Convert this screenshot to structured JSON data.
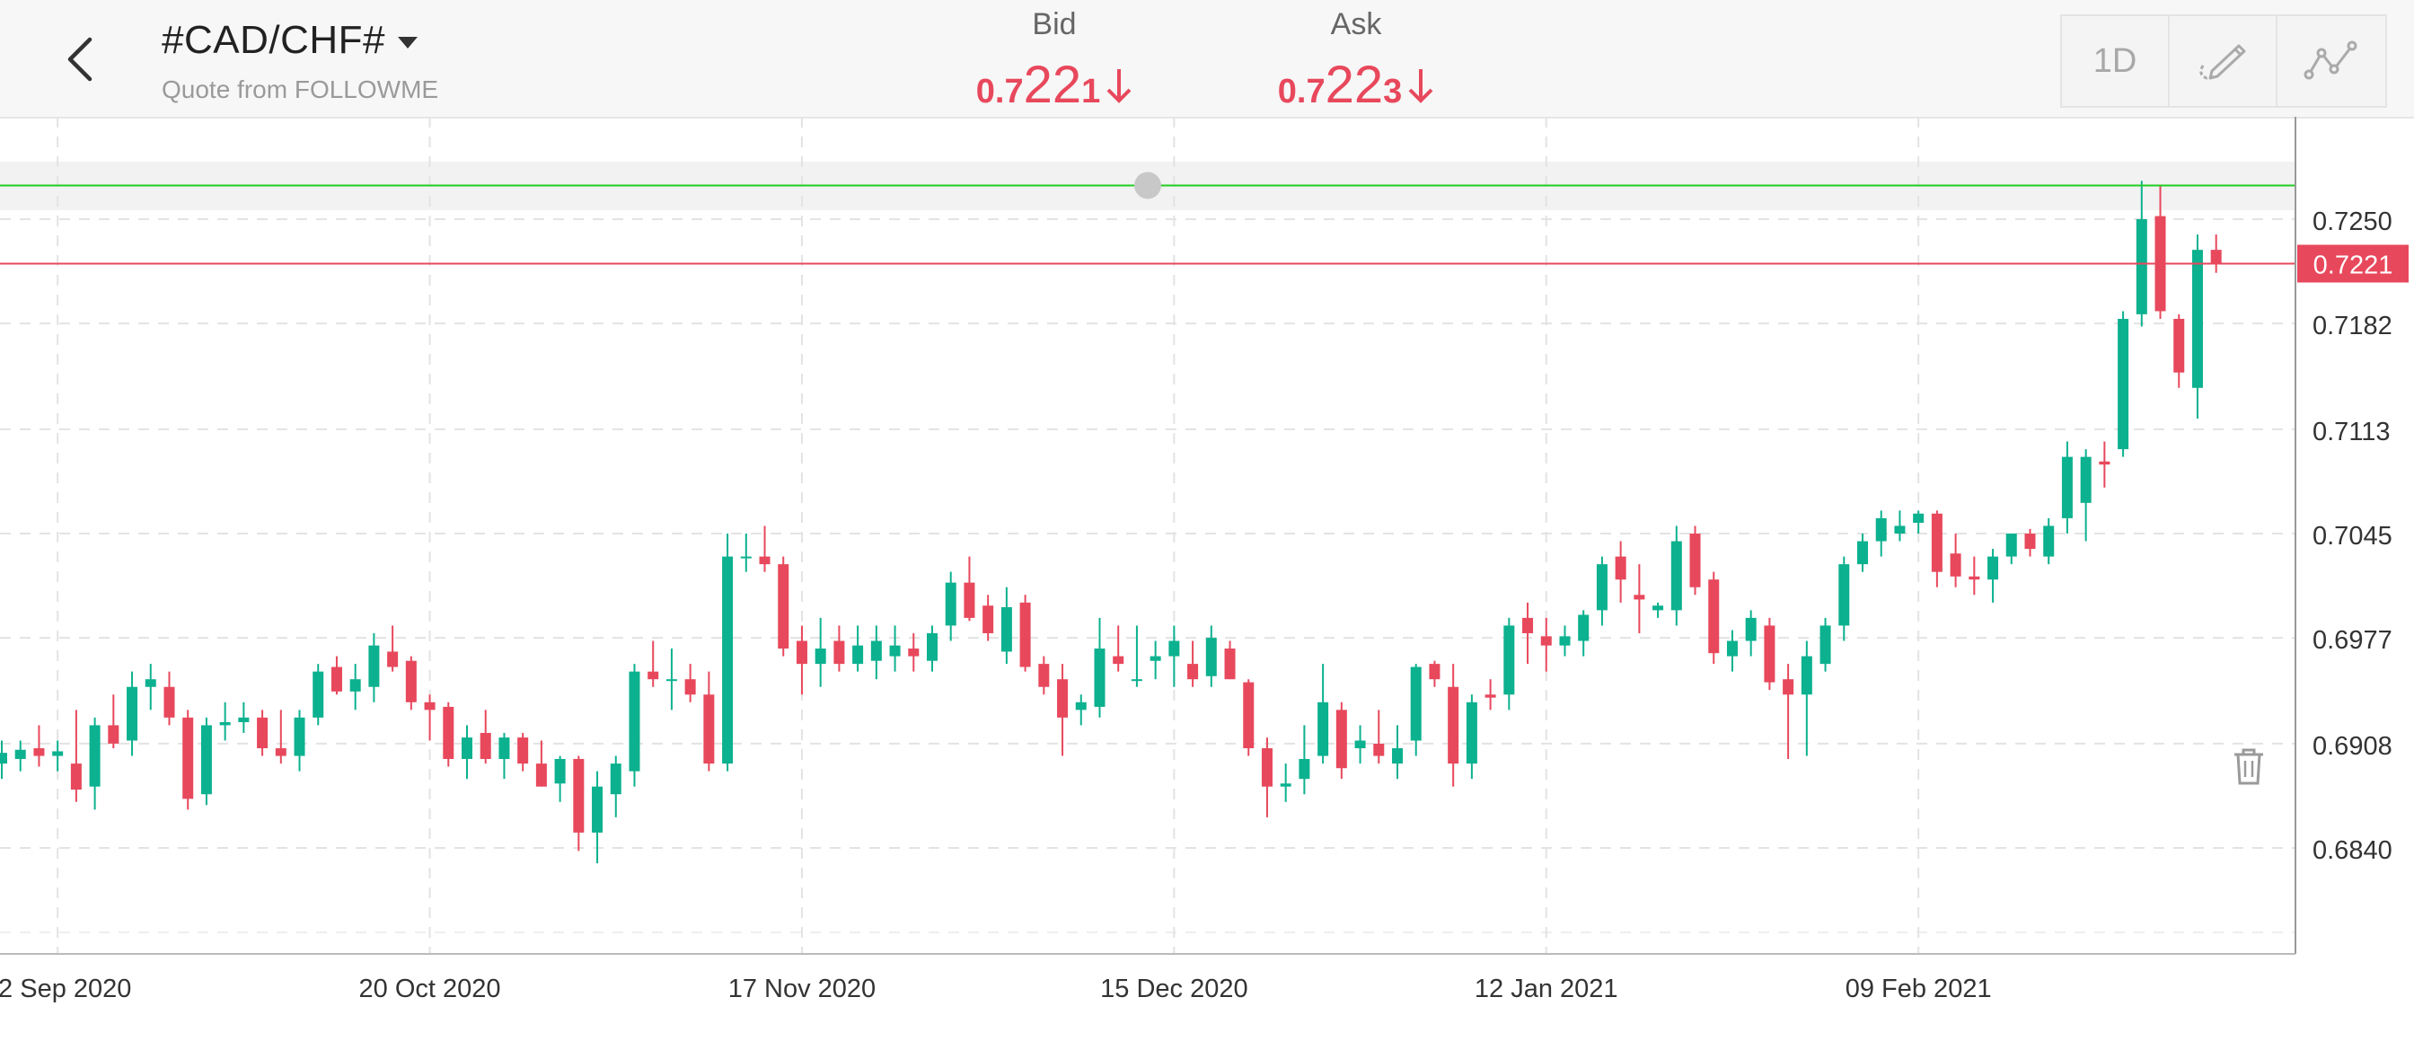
{
  "header": {
    "symbol": "#CAD/CHF#",
    "quote_source": "Quote from FOLLOWME",
    "bid": {
      "label": "Bid",
      "small": "0.7",
      "big": "22",
      "tail": "1"
    },
    "ask": {
      "label": "Ask",
      "small": "0.7",
      "big": "22",
      "tail": "3"
    },
    "toolbar": {
      "timeframe": "1D"
    }
  },
  "icons": {
    "back": "chevron-left-icon",
    "dropdown": "caret-down-icon",
    "bid_trend": "arrow-down-icon",
    "ask_trend": "arrow-down-icon",
    "draw": "pencil-icon",
    "indicators": "line-chart-icon",
    "delete": "trash-icon"
  },
  "colors": {
    "up": "#0cb18f",
    "down": "#e8485c",
    "alert_line": "#22cc22",
    "price_line": "#e8485c"
  },
  "chart_data": {
    "type": "candlestick",
    "y_ticks": [
      0.725,
      0.7182,
      0.7113,
      0.7045,
      0.6977,
      0.6908,
      0.684
    ],
    "y_tick_labels": [
      "0.7250",
      "0.7182",
      "0.7113",
      "0.7045",
      "0.6977",
      "0.6908",
      "0.6840"
    ],
    "x_tick_labels": [
      "22 Sep 2020",
      "20 Oct 2020",
      "17 Nov 2020",
      "15 Dec 2020",
      "12 Jan 2021",
      "09 Feb 2021"
    ],
    "current_price": 0.7221,
    "current_price_label": "0.7221",
    "alert_level": 0.7272,
    "candles": [
      [
        0.6895,
        0.691,
        0.6885,
        0.6902
      ],
      [
        0.6898,
        0.691,
        0.689,
        0.6904
      ],
      [
        0.6905,
        0.692,
        0.6893,
        0.69
      ],
      [
        0.69,
        0.691,
        0.689,
        0.6903
      ],
      [
        0.6895,
        0.693,
        0.687,
        0.6878
      ],
      [
        0.688,
        0.6925,
        0.6865,
        0.692
      ],
      [
        0.692,
        0.694,
        0.6905,
        0.6908
      ],
      [
        0.691,
        0.6955,
        0.69,
        0.6945
      ],
      [
        0.6945,
        0.696,
        0.693,
        0.695
      ],
      [
        0.6945,
        0.6955,
        0.692,
        0.6925
      ],
      [
        0.6925,
        0.693,
        0.6865,
        0.6872
      ],
      [
        0.6875,
        0.6925,
        0.6868,
        0.692
      ],
      [
        0.692,
        0.6935,
        0.691,
        0.6922
      ],
      [
        0.6922,
        0.6935,
        0.6915,
        0.6925
      ],
      [
        0.6925,
        0.693,
        0.69,
        0.6905
      ],
      [
        0.6905,
        0.693,
        0.6895,
        0.69
      ],
      [
        0.69,
        0.693,
        0.689,
        0.6925
      ],
      [
        0.6925,
        0.696,
        0.692,
        0.6955
      ],
      [
        0.6958,
        0.6965,
        0.694,
        0.6942
      ],
      [
        0.6942,
        0.696,
        0.693,
        0.695
      ],
      [
        0.6945,
        0.698,
        0.6935,
        0.6972
      ],
      [
        0.6968,
        0.6985,
        0.6955,
        0.6958
      ],
      [
        0.6962,
        0.6965,
        0.693,
        0.6935
      ],
      [
        0.6935,
        0.694,
        0.691,
        0.693
      ],
      [
        0.6932,
        0.6935,
        0.6893,
        0.6898
      ],
      [
        0.6898,
        0.692,
        0.6885,
        0.6912
      ],
      [
        0.6915,
        0.693,
        0.6895,
        0.6898
      ],
      [
        0.6898,
        0.6915,
        0.6885,
        0.6912
      ],
      [
        0.6912,
        0.6915,
        0.689,
        0.6895
      ],
      [
        0.6895,
        0.691,
        0.688,
        0.688
      ],
      [
        0.6882,
        0.69,
        0.687,
        0.6898
      ],
      [
        0.6898,
        0.69,
        0.6838,
        0.685
      ],
      [
        0.685,
        0.689,
        0.683,
        0.688
      ],
      [
        0.6875,
        0.69,
        0.686,
        0.6895
      ],
      [
        0.689,
        0.696,
        0.688,
        0.6955
      ],
      [
        0.6955,
        0.6975,
        0.6945,
        0.695
      ],
      [
        0.695,
        0.697,
        0.693,
        0.695
      ],
      [
        0.695,
        0.696,
        0.6935,
        0.694
      ],
      [
        0.694,
        0.6955,
        0.689,
        0.6895
      ],
      [
        0.6895,
        0.7045,
        0.689,
        0.703
      ],
      [
        0.703,
        0.7045,
        0.702,
        0.703
      ],
      [
        0.703,
        0.705,
        0.702,
        0.7025
      ],
      [
        0.7025,
        0.703,
        0.6965,
        0.697
      ],
      [
        0.6975,
        0.6985,
        0.694,
        0.696
      ],
      [
        0.696,
        0.699,
        0.6945,
        0.697
      ],
      [
        0.6975,
        0.6985,
        0.6955,
        0.696
      ],
      [
        0.696,
        0.6985,
        0.6955,
        0.6972
      ],
      [
        0.6962,
        0.6985,
        0.695,
        0.6975
      ],
      [
        0.6965,
        0.6985,
        0.6955,
        0.6972
      ],
      [
        0.697,
        0.698,
        0.6955,
        0.6965
      ],
      [
        0.6962,
        0.6985,
        0.6955,
        0.698
      ],
      [
        0.6985,
        0.702,
        0.6975,
        0.7013
      ],
      [
        0.7013,
        0.703,
        0.6988,
        0.699
      ],
      [
        0.6998,
        0.7005,
        0.6975,
        0.698
      ],
      [
        0.6968,
        0.701,
        0.696,
        0.6997
      ],
      [
        0.7,
        0.7005,
        0.6955,
        0.6958
      ],
      [
        0.696,
        0.6965,
        0.694,
        0.6945
      ],
      [
        0.695,
        0.696,
        0.69,
        0.6925
      ],
      [
        0.693,
        0.694,
        0.692,
        0.6935
      ],
      [
        0.6932,
        0.699,
        0.6925,
        0.697
      ],
      [
        0.6965,
        0.6985,
        0.6955,
        0.696
      ],
      [
        0.695,
        0.6985,
        0.6945,
        0.695
      ],
      [
        0.6962,
        0.6975,
        0.695,
        0.6965
      ],
      [
        0.6965,
        0.6985,
        0.6945,
        0.6975
      ],
      [
        0.696,
        0.6975,
        0.6945,
        0.695
      ],
      [
        0.6952,
        0.6985,
        0.6945,
        0.6977
      ],
      [
        0.697,
        0.6975,
        0.695,
        0.695
      ],
      [
        0.6948,
        0.695,
        0.69,
        0.6905
      ],
      [
        0.6905,
        0.6912,
        0.686,
        0.688
      ],
      [
        0.688,
        0.6895,
        0.687,
        0.6882
      ],
      [
        0.6885,
        0.692,
        0.6875,
        0.6898
      ],
      [
        0.69,
        0.696,
        0.6895,
        0.6935
      ],
      [
        0.693,
        0.6935,
        0.6885,
        0.6892
      ],
      [
        0.6905,
        0.692,
        0.6895,
        0.691
      ],
      [
        0.6908,
        0.693,
        0.6895,
        0.69
      ],
      [
        0.6895,
        0.692,
        0.6885,
        0.6905
      ],
      [
        0.691,
        0.696,
        0.69,
        0.6958
      ],
      [
        0.696,
        0.6962,
        0.6945,
        0.695
      ],
      [
        0.6945,
        0.696,
        0.688,
        0.6895
      ],
      [
        0.6895,
        0.694,
        0.6885,
        0.6935
      ],
      [
        0.694,
        0.695,
        0.693,
        0.6938
      ],
      [
        0.694,
        0.699,
        0.693,
        0.6985
      ],
      [
        0.699,
        0.7,
        0.696,
        0.698
      ],
      [
        0.6978,
        0.699,
        0.6955,
        0.6972
      ],
      [
        0.6972,
        0.6985,
        0.6965,
        0.6978
      ],
      [
        0.6975,
        0.6995,
        0.6965,
        0.6992
      ],
      [
        0.6995,
        0.703,
        0.6985,
        0.7025
      ],
      [
        0.703,
        0.704,
        0.7,
        0.7015
      ],
      [
        0.7005,
        0.7025,
        0.698,
        0.7002
      ],
      [
        0.6995,
        0.7,
        0.699,
        0.6998
      ],
      [
        0.6995,
        0.705,
        0.6985,
        0.704
      ],
      [
        0.7045,
        0.705,
        0.7005,
        0.701
      ],
      [
        0.7015,
        0.702,
        0.696,
        0.6967
      ],
      [
        0.6965,
        0.6982,
        0.6955,
        0.6975
      ],
      [
        0.6975,
        0.6995,
        0.6965,
        0.699
      ],
      [
        0.6985,
        0.699,
        0.6943,
        0.6948
      ],
      [
        0.695,
        0.696,
        0.6898,
        0.694
      ],
      [
        0.694,
        0.6975,
        0.69,
        0.6965
      ],
      [
        0.696,
        0.699,
        0.6955,
        0.6985
      ],
      [
        0.6985,
        0.703,
        0.6975,
        0.7025
      ],
      [
        0.7025,
        0.7045,
        0.702,
        0.704
      ],
      [
        0.704,
        0.706,
        0.703,
        0.7055
      ],
      [
        0.7045,
        0.706,
        0.704,
        0.705
      ],
      [
        0.7052,
        0.706,
        0.7045,
        0.7058
      ],
      [
        0.7058,
        0.706,
        0.701,
        0.702
      ],
      [
        0.7032,
        0.7045,
        0.701,
        0.7017
      ],
      [
        0.7017,
        0.703,
        0.7005,
        0.7015
      ],
      [
        0.7015,
        0.7035,
        0.7,
        0.703
      ],
      [
        0.703,
        0.7045,
        0.7025,
        0.7045
      ],
      [
        0.7045,
        0.7048,
        0.703,
        0.7035
      ],
      [
        0.703,
        0.7055,
        0.7025,
        0.705
      ],
      [
        0.7055,
        0.7105,
        0.7045,
        0.7095
      ],
      [
        0.7065,
        0.71,
        0.704,
        0.7095
      ],
      [
        0.7092,
        0.7105,
        0.7075,
        0.709
      ],
      [
        0.71,
        0.719,
        0.7095,
        0.7185
      ],
      [
        0.7188,
        0.7275,
        0.718,
        0.725
      ],
      [
        0.7252,
        0.7272,
        0.7185,
        0.719
      ],
      [
        0.7185,
        0.7188,
        0.714,
        0.715
      ],
      [
        0.714,
        0.724,
        0.712,
        0.723
      ],
      [
        0.723,
        0.724,
        0.7215,
        0.7221
      ]
    ]
  }
}
